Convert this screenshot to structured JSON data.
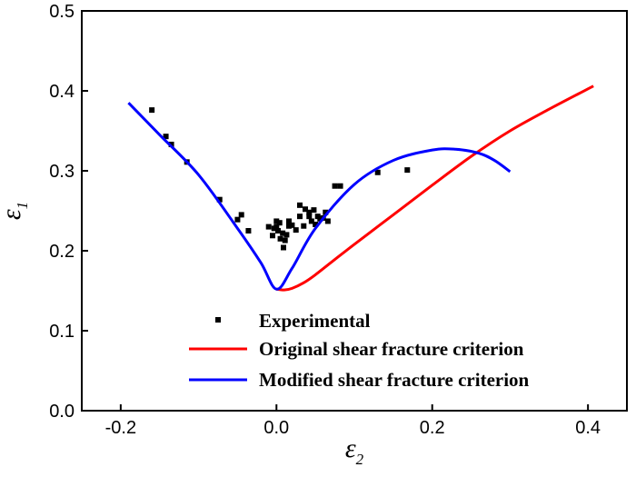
{
  "chart_data": {
    "type": "scatter",
    "xlabel": {
      "main": "ε",
      "sub": "2"
    },
    "ylabel": {
      "main": "ε",
      "sub": "1"
    },
    "xlim": [
      -0.25,
      0.45
    ],
    "ylim": [
      0.0,
      0.5
    ],
    "xticks": [
      -0.2,
      0.0,
      0.2,
      0.4
    ],
    "xtick_labels": [
      "-0.2",
      "0.0",
      "0.2",
      "0.4"
    ],
    "yticks": [
      0.0,
      0.1,
      0.2,
      0.3,
      0.4,
      0.5
    ],
    "ytick_labels": [
      "0.0",
      "0.1",
      "0.2",
      "0.3",
      "0.4",
      "0.5"
    ],
    "grid": false,
    "legend_position": "bottom-right",
    "series": [
      {
        "name": "Experimental",
        "kind": "scatter",
        "color": "#000000",
        "points": [
          [
            -0.16,
            0.376
          ],
          [
            -0.142,
            0.343
          ],
          [
            -0.135,
            0.333
          ],
          [
            -0.115,
            0.311
          ],
          [
            -0.073,
            0.264
          ],
          [
            -0.05,
            0.239
          ],
          [
            -0.045,
            0.245
          ],
          [
            -0.036,
            0.225
          ],
          [
            -0.01,
            0.23
          ],
          [
            -0.005,
            0.219
          ],
          [
            -0.003,
            0.228
          ],
          [
            0.0,
            0.23
          ],
          [
            0.0,
            0.237
          ],
          [
            0.002,
            0.225
          ],
          [
            0.004,
            0.235
          ],
          [
            0.005,
            0.215
          ],
          [
            0.008,
            0.222
          ],
          [
            0.009,
            0.204
          ],
          [
            0.011,
            0.213
          ],
          [
            0.013,
            0.22
          ],
          [
            0.016,
            0.231
          ],
          [
            0.016,
            0.237
          ],
          [
            0.02,
            0.232
          ],
          [
            0.025,
            0.226
          ],
          [
            0.03,
            0.243
          ],
          [
            0.03,
            0.257
          ],
          [
            0.035,
            0.231
          ],
          [
            0.037,
            0.252
          ],
          [
            0.042,
            0.248
          ],
          [
            0.042,
            0.243
          ],
          [
            0.045,
            0.237
          ],
          [
            0.048,
            0.251
          ],
          [
            0.05,
            0.233
          ],
          [
            0.053,
            0.243
          ],
          [
            0.056,
            0.24
          ],
          [
            0.06,
            0.241
          ],
          [
            0.063,
            0.248
          ],
          [
            0.066,
            0.237
          ],
          [
            0.075,
            0.281
          ],
          [
            0.082,
            0.281
          ],
          [
            0.13,
            0.298
          ],
          [
            0.168,
            0.301
          ]
        ]
      },
      {
        "name": "Original shear fracture criterion",
        "kind": "line",
        "color": "#ff0000",
        "points": [
          [
            0.0,
            0.152
          ],
          [
            0.01,
            0.151
          ],
          [
            0.02,
            0.153
          ],
          [
            0.035,
            0.16
          ],
          [
            0.05,
            0.17
          ],
          [
            0.08,
            0.193
          ],
          [
            0.1,
            0.208
          ],
          [
            0.15,
            0.245
          ],
          [
            0.2,
            0.282
          ],
          [
            0.25,
            0.318
          ],
          [
            0.3,
            0.35
          ],
          [
            0.35,
            0.377
          ],
          [
            0.407,
            0.406
          ]
        ]
      },
      {
        "name": "Modified shear fracture criterion",
        "kind": "line",
        "color": "#0000ff",
        "points": [
          [
            -0.19,
            0.385
          ],
          [
            -0.15,
            0.345
          ],
          [
            -0.1,
            0.295
          ],
          [
            -0.05,
            0.228
          ],
          [
            -0.02,
            0.185
          ],
          [
            0.0,
            0.152
          ],
          [
            0.02,
            0.178
          ],
          [
            0.05,
            0.228
          ],
          [
            0.1,
            0.283
          ],
          [
            0.15,
            0.313
          ],
          [
            0.2,
            0.326
          ],
          [
            0.23,
            0.327
          ],
          [
            0.26,
            0.322
          ],
          [
            0.28,
            0.313
          ],
          [
            0.3,
            0.299
          ]
        ]
      }
    ]
  }
}
